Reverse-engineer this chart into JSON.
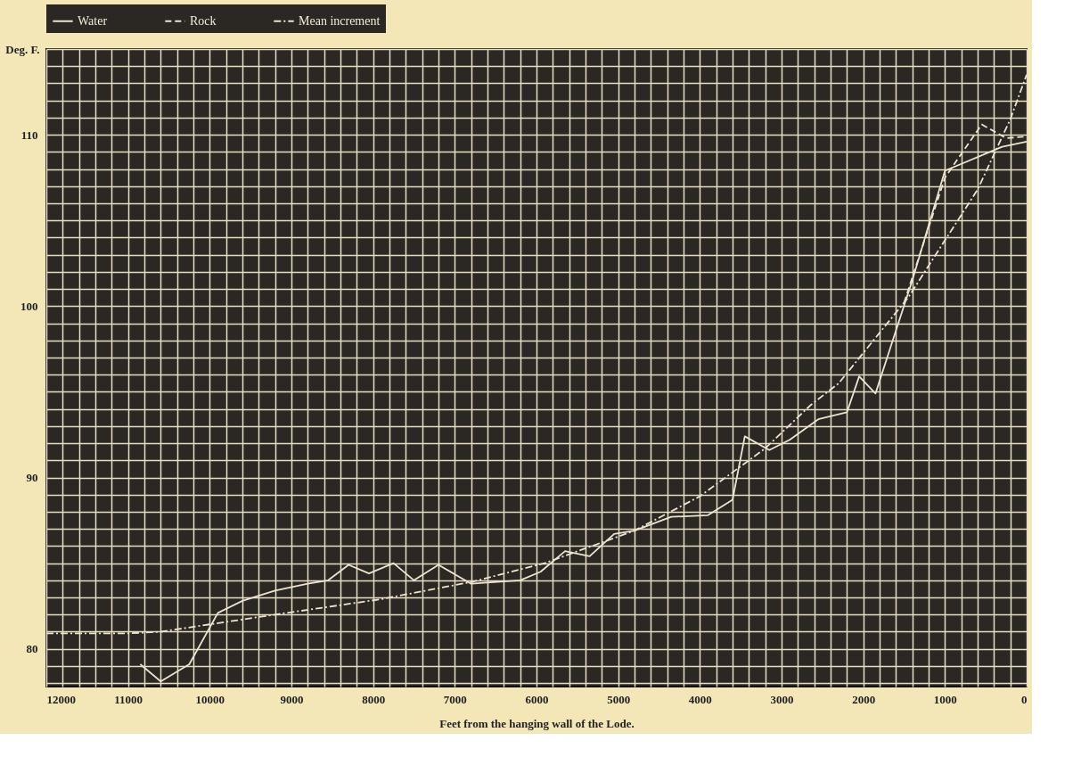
{
  "chart_data": {
    "type": "line",
    "xlabel": "Feet from the hanging wall of the Lode.",
    "ylabel": "Deg. F.",
    "xlim": [
      12000,
      0
    ],
    "ylim": [
      77.8,
      115
    ],
    "xticks": [
      12000,
      {
        "value": 11800,
        "label": null
      },
      {
        "value": 11600,
        "label": null
      },
      {
        "value": 11400,
        "label": null
      },
      {
        "value": 11200,
        "label": null
      },
      11000,
      {
        "value": 10800,
        "label": null
      },
      {
        "value": 10600,
        "label": null
      },
      {
        "value": 10400,
        "label": null
      },
      {
        "value": 10200,
        "label": null
      },
      10000,
      {
        "value": 9800,
        "label": null
      },
      {
        "value": 9600,
        "label": null
      },
      {
        "value": 9400,
        "label": null
      },
      {
        "value": 9200,
        "label": null
      },
      9000,
      {
        "value": 8800,
        "label": null
      },
      {
        "value": 8600,
        "label": null
      },
      {
        "value": 8400,
        "label": null
      },
      {
        "value": 8200,
        "label": null
      },
      8000,
      {
        "value": 7800,
        "label": null
      },
      {
        "value": 7600,
        "label": null
      },
      {
        "value": 7400,
        "label": null
      },
      {
        "value": 7200,
        "label": null
      },
      7000,
      {
        "value": 6800,
        "label": null
      },
      {
        "value": 6600,
        "label": null
      },
      {
        "value": 6400,
        "label": null
      },
      {
        "value": 6200,
        "label": null
      },
      6000,
      {
        "value": 5800,
        "label": null
      },
      {
        "value": 5600,
        "label": null
      },
      {
        "value": 5400,
        "label": null
      },
      {
        "value": 5200,
        "label": null
      },
      5000,
      {
        "value": 4800,
        "label": null
      },
      {
        "value": 4600,
        "label": null
      },
      {
        "value": 4400,
        "label": null
      },
      {
        "value": 4200,
        "label": null
      },
      4000,
      {
        "value": 3800,
        "label": null
      },
      {
        "value": 3600,
        "label": null
      },
      {
        "value": 3400,
        "label": null
      },
      {
        "value": 3200,
        "label": null
      },
      3000,
      {
        "value": 2800,
        "label": null
      },
      {
        "value": 2600,
        "label": null
      },
      {
        "value": 2400,
        "label": null
      },
      {
        "value": 2200,
        "label": null
      },
      2000,
      {
        "value": 1800,
        "label": null
      },
      {
        "value": 1600,
        "label": null
      },
      {
        "value": 1400,
        "label": null
      },
      {
        "value": 1200,
        "label": null
      },
      1000,
      {
        "value": 800,
        "label": null
      },
      {
        "value": 600,
        "label": null
      },
      {
        "value": 400,
        "label": null
      },
      {
        "value": 200,
        "label": null
      },
      0
    ],
    "yticks": [
      {
        "value": 78,
        "label": null
      },
      {
        "value": 79,
        "label": null
      },
      80,
      {
        "value": 81,
        "label": null
      },
      {
        "value": 82,
        "label": null
      },
      {
        "value": 83,
        "label": null
      },
      {
        "value": 84,
        "label": null
      },
      {
        "value": 85,
        "label": null
      },
      {
        "value": 86,
        "label": null
      },
      {
        "value": 87,
        "label": null
      },
      {
        "value": 88,
        "label": null
      },
      {
        "value": 89,
        "label": null
      },
      90,
      {
        "value": 91,
        "label": null
      },
      {
        "value": 92,
        "label": null
      },
      {
        "value": 93,
        "label": null
      },
      {
        "value": 94,
        "label": null
      },
      {
        "value": 95,
        "label": null
      },
      {
        "value": 96,
        "label": null
      },
      {
        "value": 97,
        "label": null
      },
      {
        "value": 98,
        "label": null
      },
      {
        "value": 99,
        "label": null
      },
      100,
      {
        "value": 101,
        "label": null
      },
      {
        "value": 102,
        "label": null
      },
      {
        "value": 103,
        "label": null
      },
      {
        "value": 104,
        "label": null
      },
      {
        "value": 105,
        "label": null
      },
      {
        "value": 106,
        "label": null
      },
      {
        "value": 107,
        "label": null
      },
      {
        "value": 108,
        "label": null
      },
      {
        "value": 109,
        "label": null
      },
      110,
      {
        "value": 111,
        "label": null
      },
      {
        "value": 112,
        "label": null
      },
      {
        "value": 113,
        "label": null
      },
      {
        "value": 114,
        "label": null
      },
      {
        "value": 115,
        "label": null
      }
    ],
    "grid": true,
    "legend": "top",
    "marker": "none",
    "series": [
      {
        "name": "Water",
        "color": "#ebe4d0",
        "line_style": "solid",
        "x": [
          10850,
          10600,
          10250,
          9900,
          9600,
          9200,
          8800,
          8550,
          8300,
          8050,
          7750,
          7500,
          7200,
          6800,
          6200,
          5950,
          5650,
          5350,
          5050,
          4800,
          4350,
          3900,
          3600,
          3450,
          3150,
          2900,
          2550,
          2200,
          2050,
          1850,
          1400,
          1000,
          300,
          0
        ],
        "values": [
          79.1,
          78.1,
          79.1,
          82.1,
          82.8,
          83.4,
          83.8,
          84.0,
          84.9,
          84.4,
          85.0,
          84.0,
          84.9,
          83.8,
          84.0,
          84.5,
          85.7,
          85.4,
          86.7,
          86.9,
          87.7,
          87.8,
          88.7,
          92.4,
          91.6,
          92.2,
          93.4,
          93.8,
          95.9,
          94.9,
          101.5,
          107.9,
          109.3,
          109.6
        ]
      },
      {
        "name": "Rock",
        "color": "#ebe4d0",
        "line_style": "dashed",
        "x": [
          1500,
          1000,
          550,
          250,
          0
        ],
        "values": [
          100.2,
          107.5,
          110.6,
          109.8,
          109.9
        ]
      },
      {
        "name": "Mean increment",
        "color": "#ebe4d0",
        "line_style": "dashdot",
        "x": [
          12000,
          11000,
          10600,
          9200,
          7900,
          6800,
          5900,
          4800,
          4000,
          3200,
          2650,
          2300,
          1450,
          600,
          200,
          0
        ],
        "values": [
          80.9,
          80.9,
          81.0,
          82.0,
          82.9,
          83.9,
          85.0,
          86.9,
          88.9,
          91.7,
          94.2,
          95.5,
          100.5,
          106.8,
          110.9,
          113.5
        ]
      }
    ]
  }
}
